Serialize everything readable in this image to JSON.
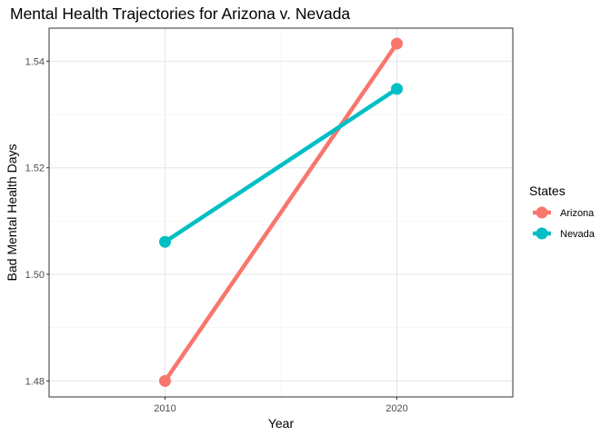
{
  "chart_data": {
    "type": "line",
    "title": "Mental Health Trajectories for Arizona v. Nevada",
    "xlabel": "Year",
    "ylabel": "Bad Mental Health Days",
    "x": [
      "2010",
      "2020"
    ],
    "xlim": [
      2005,
      2025
    ],
    "ylim": [
      1.477,
      1.5462
    ],
    "y_ticks": [
      "1.48",
      "1.50",
      "1.52",
      "1.54"
    ],
    "grid": true,
    "legend": {
      "title": "States",
      "placement": "right"
    },
    "series": [
      {
        "name": "Arizona",
        "color": "#F8766D",
        "values": [
          1.48,
          1.5433
        ]
      },
      {
        "name": "Nevada",
        "color": "#00BFC4",
        "values": [
          1.5061,
          1.5348
        ]
      }
    ]
  }
}
